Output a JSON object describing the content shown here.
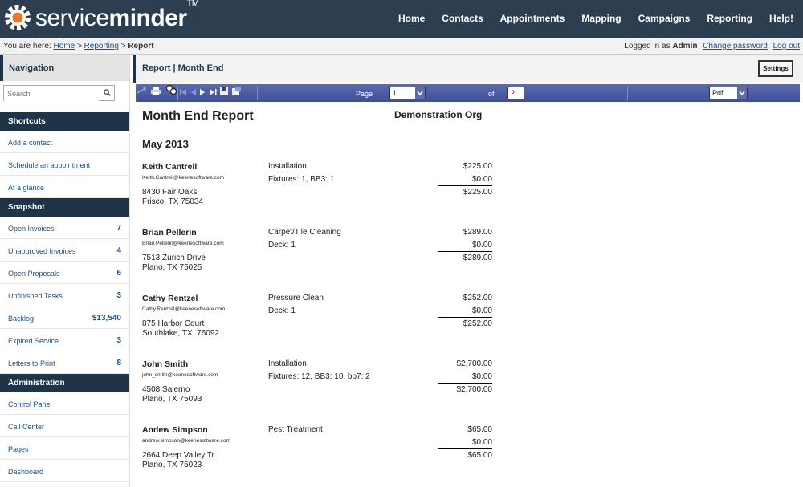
{
  "header": {
    "brand_light": "service",
    "brand_bold": "minder",
    "brand_tm": "TM",
    "nav": [
      "Home",
      "Contacts",
      "Appointments",
      "Mapping",
      "Campaigns",
      "Reporting",
      "Help!"
    ]
  },
  "crumbs": {
    "prefix": "You are here:",
    "home": "Home",
    "sep1": ">",
    "reporting": "Reporting",
    "sep2": ">",
    "current": "Report",
    "logged_prefix": "Logged in as",
    "user": "Admin",
    "change_password": "Change password",
    "logout": "Log out"
  },
  "sidebar": {
    "title": "Navigation",
    "search_placeholder": "Search",
    "shortcuts_title": "Shortcuts",
    "shortcuts": [
      "Add a contact",
      "Schedule an appointment",
      "At a glance"
    ],
    "snapshot_title": "Snapshot",
    "snapshot": [
      {
        "label": "Open Invoices",
        "count": "7"
      },
      {
        "label": "Unapproved Invoices",
        "count": "4"
      },
      {
        "label": "Open Proposals",
        "count": "6"
      },
      {
        "label": "Unfinished Tasks",
        "count": "3"
      },
      {
        "label": "Backlog",
        "count": "$13,540"
      },
      {
        "label": "Expired Service",
        "count": "3"
      },
      {
        "label": "Letters to Print",
        "count": "8"
      }
    ],
    "admin_title": "Administration",
    "admin": [
      "Control Panel",
      "Call Center",
      "Pages",
      "Dashboard"
    ]
  },
  "main": {
    "title": "Report | Month End",
    "settings": "Settings"
  },
  "toolbar": {
    "page_label": "Page",
    "page_value": "1",
    "of_label": "of",
    "total_pages": "2",
    "format": "Pdf"
  },
  "report": {
    "title": "Month End Report",
    "org": "Demonstration Org",
    "month": "May 2013",
    "customers": [
      {
        "name": "Keith Cantrell",
        "email": "Keith.Cantrell@keenesoftware.com",
        "addr1": "8430 Fair Oaks",
        "addr2": "Frisco, TX 75034",
        "service": "Installation",
        "details": "Fixtures: 1, BB3: 1",
        "amount": "$225.00",
        "tax": "$0.00",
        "total": "$225.00"
      },
      {
        "name": "Brian Pellerin",
        "email": "Brian.Pellerin@keenesoftware.com",
        "addr1": "7513 Zurich Drive",
        "addr2": "Plano, TX 75025",
        "service": "Carpet/Tile Cleaning",
        "details": "Deck: 1",
        "amount": "$289.00",
        "tax": "$0.00",
        "total": "$289.00"
      },
      {
        "name": "Cathy Rentzel",
        "email": "Cathy.Rentzel@keenesoftware.com",
        "addr1": "875 Harbor Court",
        "addr2": "Southlake, TX, 76092",
        "service": "Pressure Clean",
        "details": "Deck: 1",
        "amount": "$252.00",
        "tax": "$0.00",
        "total": "$252.00"
      },
      {
        "name": "John Smith",
        "email": "john_smith@keenesoftware.com",
        "addr1": "4508 Salerno",
        "addr2": "Plano, TX 75093",
        "service": "Installation",
        "details": "Fixtures: 12, BB3: 10, bb7: 2",
        "amount": "$2,700.00",
        "tax": "$0.00",
        "total": "$2,700.00"
      },
      {
        "name": "Andew Simpson",
        "email": "andrew.simpson@keenesoftware.com",
        "addr1": "2664 Deep Valley Tr",
        "addr2": "Plano, TX 75023",
        "service": "Pest Treatment",
        "details": "",
        "amount": "$65.00",
        "tax": "$0.00",
        "total": "$65.00"
      }
    ]
  }
}
